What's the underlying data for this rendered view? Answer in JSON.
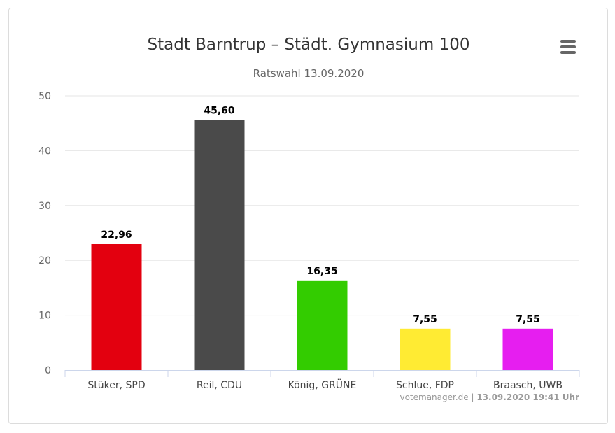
{
  "menu": {
    "icon": "hamburger-menu-icon"
  },
  "chart_data": {
    "type": "bar",
    "title": "Stadt Barntrup – Städt. Gymnasium 100",
    "subtitle": "Ratswahl 13.09.2020",
    "xlabel": "",
    "ylabel": "",
    "ylim": [
      0,
      50
    ],
    "yticks": [
      "0",
      "10",
      "20",
      "30",
      "40",
      "50"
    ],
    "grid": true,
    "categories": [
      "Stüker, SPD",
      "Reil, CDU",
      "König, GRÜNE",
      "Schlue, FDP",
      "Braasch, UWB"
    ],
    "values": [
      22.96,
      45.6,
      16.35,
      7.55,
      7.55
    ],
    "value_labels": [
      "22,96",
      "45,60",
      "16,35",
      "7,55",
      "7,55"
    ],
    "colors": [
      "#e3000f",
      "#4a4a4a",
      "#33cc00",
      "#ffeb33",
      "#e61ef0"
    ]
  },
  "credits": {
    "source": "votemanager.de",
    "separator": " | ",
    "timestamp": "13.09.2020 19:41 Uhr"
  }
}
